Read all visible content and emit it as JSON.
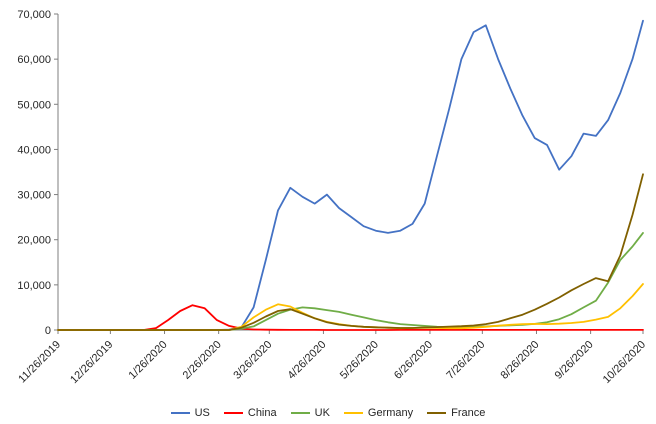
{
  "chart": {
    "background": "#FFFFFF"
  },
  "chart_data": {
    "type": "line",
    "title": "",
    "xlabel": "",
    "ylabel": "",
    "ylim": [
      0,
      70000
    ],
    "ytick_step": 10000,
    "ytick_labels": [
      "0",
      "10,000",
      "20,000",
      "30,000",
      "40,000",
      "50,000",
      "60,000",
      "70,000"
    ],
    "x_tick_labels": [
      "11/26/2019",
      "12/26/2019",
      "1/26/2020",
      "2/26/2020",
      "3/26/2020",
      "4/26/2020",
      "5/26/2020",
      "6/26/2020",
      "7/26/2020",
      "8/26/2020",
      "9/26/2020",
      "10/26/2020"
    ],
    "x_tick_days": [
      0,
      30,
      61,
      92,
      121,
      152,
      182,
      213,
      243,
      274,
      305,
      335
    ],
    "total_days": 335,
    "sample_interval_days": 7,
    "grid": false,
    "legend_position": "bottom",
    "series": [
      {
        "name": "US",
        "color": "#4472C4",
        "values": [
          0,
          0,
          0,
          0,
          0,
          0,
          0,
          0,
          0,
          0,
          0,
          0,
          0,
          10,
          80,
          600,
          5000,
          15500,
          26500,
          31500,
          29500,
          28000,
          30000,
          27000,
          25000,
          23000,
          22000,
          21500,
          22000,
          23500,
          28000,
          38500,
          49000,
          60000,
          66000,
          67500,
          60000,
          53500,
          47500,
          42500,
          41000,
          35500,
          38500,
          43500,
          43000,
          46500,
          52500,
          60000,
          68500
        ]
      },
      {
        "name": "China",
        "color": "#FF0000",
        "values": [
          0,
          0,
          0,
          0,
          0,
          0,
          0,
          0,
          400,
          2200,
          4200,
          5500,
          4800,
          2200,
          900,
          300,
          100,
          60,
          40,
          30,
          20,
          15,
          10,
          10,
          10,
          10,
          10,
          10,
          20,
          20,
          20,
          20,
          20,
          20,
          20,
          30,
          30,
          25,
          20,
          15,
          15,
          15,
          15,
          15,
          15,
          20,
          20,
          25,
          25
        ]
      },
      {
        "name": "UK",
        "color": "#70AD47",
        "values": [
          0,
          0,
          0,
          0,
          0,
          0,
          0,
          0,
          0,
          0,
          0,
          0,
          0,
          0,
          0,
          300,
          800,
          2200,
          3600,
          4500,
          5000,
          4800,
          4400,
          4000,
          3400,
          2800,
          2200,
          1700,
          1300,
          1100,
          900,
          700,
          650,
          650,
          700,
          800,
          900,
          1050,
          1150,
          1350,
          1700,
          2400,
          3500,
          5000,
          6500,
          10500,
          15500,
          18500,
          21500
        ]
      },
      {
        "name": "Germany",
        "color": "#FFC000",
        "values": [
          0,
          0,
          0,
          0,
          0,
          0,
          0,
          0,
          0,
          0,
          0,
          0,
          0,
          0,
          0,
          700,
          2800,
          4500,
          5700,
          5200,
          3800,
          2600,
          1800,
          1300,
          900,
          700,
          600,
          500,
          400,
          450,
          500,
          450,
          400,
          400,
          500,
          700,
          950,
          1150,
          1300,
          1350,
          1300,
          1400,
          1550,
          1800,
          2300,
          2900,
          4800,
          7500,
          10200
        ]
      },
      {
        "name": "France",
        "color": "#806000",
        "values": [
          0,
          0,
          0,
          0,
          0,
          0,
          0,
          0,
          0,
          0,
          0,
          0,
          0,
          0,
          0,
          500,
          1600,
          3000,
          4200,
          4600,
          3600,
          2600,
          1700,
          1200,
          900,
          700,
          600,
          500,
          450,
          450,
          550,
          650,
          750,
          850,
          1000,
          1300,
          1800,
          2600,
          3400,
          4500,
          5800,
          7200,
          8800,
          10200,
          11500,
          10800,
          16500,
          25500,
          34500
        ]
      }
    ]
  }
}
